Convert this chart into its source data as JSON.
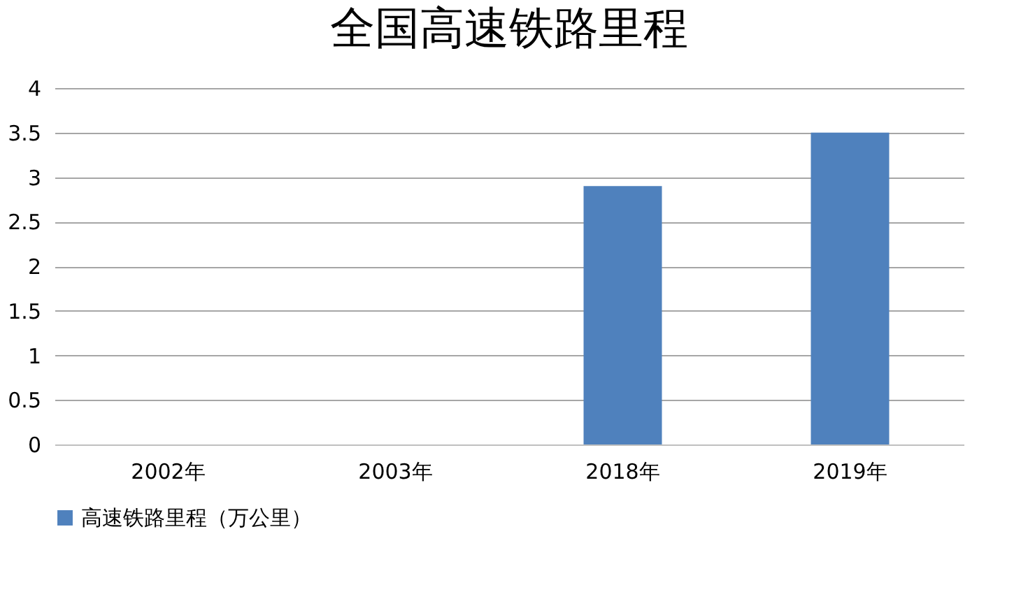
{
  "chart_data": {
    "type": "bar",
    "title": "全国高速铁路里程",
    "categories": [
      "2002年",
      "2003年",
      "2018年",
      "2019年"
    ],
    "series": [
      {
        "name": "高速铁路里程（万公里）",
        "color": "#4f81bd",
        "values": [
          0,
          0,
          2.9,
          3.5
        ]
      }
    ],
    "ylim": [
      0,
      4
    ],
    "yticks": [
      0,
      0.5,
      1,
      1.5,
      2,
      2.5,
      3,
      3.5,
      4
    ],
    "grid": "y",
    "legend": "bottom"
  }
}
